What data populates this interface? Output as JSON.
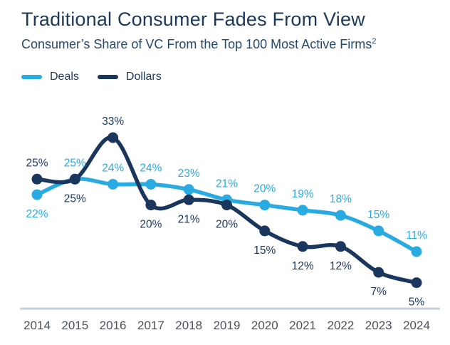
{
  "header": {
    "title": "Traditional Consumer Fades From View",
    "subtitle": "Consumer’s Share of VC From the Top 100 Most Active Firms",
    "subtitle_superscript": "2"
  },
  "legend": {
    "position": "top-left",
    "items": [
      {
        "label": "Deals",
        "color": "#29abe2"
      },
      {
        "label": "Dollars",
        "color": "#1b365d"
      }
    ]
  },
  "chart_data": {
    "type": "line",
    "title": "Traditional Consumer Fades From View",
    "subtitle": "Consumer's Share of VC From the Top 100 Most Active Firms(2)",
    "categories": [
      "2014",
      "2015",
      "2016",
      "2017",
      "2018",
      "2019",
      "2020",
      "2021",
      "2022",
      "2023",
      "2024"
    ],
    "series": [
      {
        "name": "Deals",
        "color": "#29abe2",
        "values": [
          22,
          25,
          24,
          24,
          23,
          21,
          20,
          19,
          18,
          15,
          11
        ],
        "labels": [
          "22%",
          "25%",
          "24%",
          "24%",
          "23%",
          "21%",
          "20%",
          "19%",
          "18%",
          "15%",
          "11%"
        ],
        "label_positions": [
          "below",
          "above",
          "above",
          "above",
          "above",
          "above",
          "above",
          "above",
          "above",
          "above",
          "above"
        ]
      },
      {
        "name": "Dollars",
        "color": "#1b365d",
        "values": [
          25,
          25,
          33,
          20,
          21,
          20,
          15,
          12,
          12,
          7,
          5
        ],
        "labels": [
          "25%",
          "25%",
          "33%",
          "20%",
          "21%",
          "20%",
          "15%",
          "12%",
          "12%",
          "7%",
          "5%"
        ],
        "label_positions": [
          "above",
          "below",
          "above",
          "below",
          "below",
          "below",
          "below",
          "below",
          "below",
          "below",
          "below"
        ]
      }
    ],
    "xlabel": "",
    "ylabel": "",
    "ylim": [
      0,
      40
    ],
    "grid": false,
    "legend_position": "top-left",
    "axis_line_color": "#c9d2d9",
    "tick_label_color": "#47525c",
    "data_label_font_size": 15.5,
    "tick_label_font_size": 17
  }
}
